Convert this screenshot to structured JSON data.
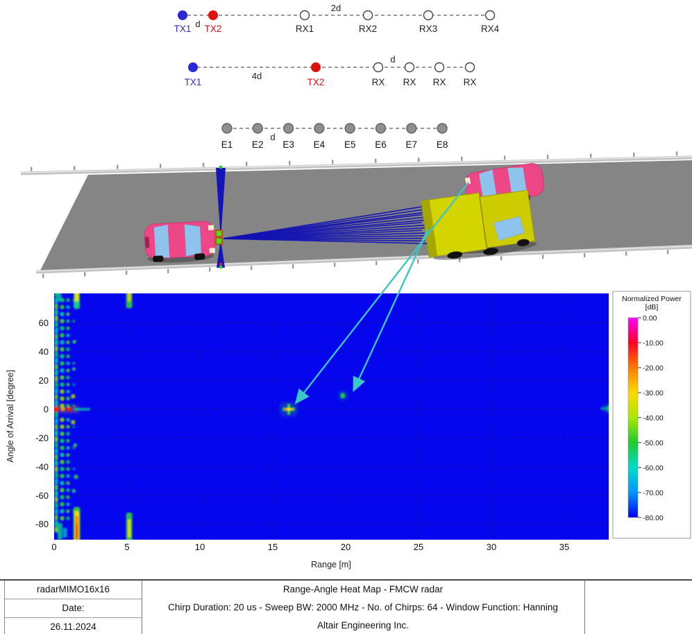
{
  "antenna_arrays": {
    "row1": {
      "tx": [
        {
          "label": "TX1",
          "color": "#2a2ad2"
        },
        {
          "label": "TX2",
          "color": "#e01010"
        }
      ],
      "tx_spacing_label": "d",
      "rx": [
        "RX1",
        "RX2",
        "RX3",
        "RX4"
      ],
      "rx_spacing_label": "2d"
    },
    "row2": {
      "tx": [
        {
          "label": "TX1",
          "color": "#2a2ad2"
        },
        {
          "label": "TX2",
          "color": "#e01010"
        }
      ],
      "tx_spacing_label": "4d",
      "rx": [
        "RX",
        "RX",
        "RX",
        "RX"
      ],
      "rx_spacing_label": "d"
    },
    "virtual_array": {
      "elements": [
        "E1",
        "E2",
        "E3",
        "E4",
        "E5",
        "E6",
        "E7",
        "E8"
      ],
      "spacing_label": "d"
    }
  },
  "chart_data": {
    "type": "heatmap",
    "title": "Range-Angle Heat Map - FMCW radar",
    "xlabel": "Range [m]",
    "ylabel": "Angle of Arrival [degree]",
    "xlim": [
      0,
      38.2
    ],
    "ylim": [
      -90,
      81
    ],
    "x_ticks": [
      0,
      5,
      10,
      15,
      20,
      25,
      30,
      35
    ],
    "y_ticks": [
      60,
      40,
      20,
      0,
      -20,
      -40,
      -60,
      -80
    ],
    "grid": true,
    "legend_position": "right",
    "background_level_db": -80,
    "background_color": "#0505ee",
    "colorbar": {
      "title_line1": "Normalized Power",
      "title_line2": "[dB]",
      "label": "Normalized Power [dB]",
      "max_db": 0,
      "min_db": -80,
      "ticks": [
        "0.00",
        "-10.00",
        "-20.00",
        "-30.00",
        "-40.00",
        "-50.00",
        "-60.00",
        "-70.00",
        "-80.00"
      ],
      "colors": [
        "#ff00ff",
        "#ff0026",
        "#ff7a00",
        "#ffd900",
        "#a8e800",
        "#1ecb2e",
        "#00dcc8",
        "#0096ff",
        "#0000f0"
      ]
    },
    "targets": [
      {
        "range_m": 16.1,
        "angle_deg": 0,
        "peak_db": -10,
        "note": "strong cross-shaped return (truck)"
      },
      {
        "range_m": 19.8,
        "angle_deg": 9.5,
        "peak_db": -50,
        "note": "weak return (car)"
      },
      {
        "range_m": 38.0,
        "angle_deg": 0.5,
        "peak_db": -50,
        "note": "return at right plot edge"
      }
    ],
    "clutter": {
      "edge_column": {
        "range_m": 0.15,
        "angle_start": 80,
        "angle_end": -88,
        "angle_step": 4.2,
        "size": [
          5,
          8
        ],
        "colors": [
          "#00cc66",
          "#00c4c4",
          "#55d52e",
          "#00d898",
          "#7fdd22"
        ]
      },
      "sidelobe_rows": {
        "angle_start": 76,
        "angle_end": -76,
        "angle_step": 4.9,
        "ranges_m": [
          0.55,
          0.95
        ],
        "third_dot_range_m": 1.35,
        "near_axis_color": "#9adf00",
        "colors": [
          "#00d465",
          "#2fd22f",
          "#00c9b0",
          "#59d82a"
        ]
      },
      "blobs": [
        [
          0.15,
          0,
          7,
          7,
          "#ff1e00",
          1
        ],
        [
          1.05,
          0,
          6,
          6,
          "#ff1e00",
          1
        ],
        [
          0.6,
          0,
          6,
          5,
          "#ff9900",
          0.9
        ],
        [
          1.9,
          0,
          24,
          4,
          "#00ccaa",
          0.75
        ],
        [
          0.8,
          0,
          40,
          11,
          "#ffa500",
          0.3
        ],
        [
          1.3,
          9,
          6,
          6,
          "#9ad500",
          0.9
        ],
        [
          1.3,
          -9,
          6,
          6,
          "#9ad500",
          0.9
        ],
        [
          1.4,
          47,
          5,
          5,
          "#2fcc5e",
          0.9
        ],
        [
          1.45,
          -25,
          5,
          5,
          "#2fcc5e",
          0.9
        ],
        [
          1.5,
          -47,
          6,
          6,
          "#2fcc5e",
          0.9
        ],
        [
          1.35,
          28,
          5,
          5,
          "#2fcc6e",
          0.85
        ],
        [
          1.35,
          -57,
          5,
          5,
          "#2fcc6e",
          0.85
        ],
        [
          1.55,
          77,
          9,
          30,
          "#2ecc44",
          0.95
        ],
        [
          1.55,
          79,
          5,
          20,
          "#ffe800",
          0.9
        ],
        [
          1.55,
          73,
          7,
          10,
          "#00ccaa",
          0.8
        ],
        [
          5.15,
          77,
          9,
          28,
          "#2ecc44",
          0.9
        ],
        [
          5.15,
          79,
          4,
          16,
          "#ffcc00",
          0.85
        ],
        [
          0.35,
          79,
          6,
          16,
          "#00cc99",
          0.8
        ],
        [
          1.55,
          -81,
          10,
          54,
          "#2ecc44",
          0.95
        ],
        [
          1.55,
          -82,
          6,
          46,
          "#ffdd00",
          0.95
        ],
        [
          1.55,
          -83,
          4,
          36,
          "#ff7700",
          0.95
        ],
        [
          1.55,
          -85,
          3,
          20,
          "#ff2200",
          0.95
        ],
        [
          5.15,
          -82,
          9,
          42,
          "#2ecc44",
          0.9
        ],
        [
          5.15,
          -83,
          4,
          26,
          "#ffe800",
          0.8
        ],
        [
          0.4,
          -85,
          7,
          24,
          "#00cc88",
          0.85
        ],
        [
          0.75,
          -86,
          6,
          14,
          "#00bbcc",
          0.8
        ],
        [
          16.1,
          0,
          4,
          16,
          "#2ecc55",
          0.95
        ],
        [
          16.1,
          0,
          18,
          5,
          "#2ecc55",
          0.95
        ],
        [
          16.1,
          0,
          12,
          3,
          "#ffe800",
          1
        ],
        [
          15.9,
          0,
          3,
          3,
          "#ff2200",
          1
        ],
        [
          16.3,
          0,
          3,
          3,
          "#ff8800",
          1
        ],
        [
          16.1,
          2,
          3,
          3,
          "#66dd33",
          0.9
        ],
        [
          16.1,
          -2.2,
          3,
          3,
          "#66dd33",
          0.9
        ],
        [
          16.1,
          0,
          26,
          20,
          "#22bb66",
          0.28
        ],
        [
          19.8,
          9.5,
          6,
          7,
          "#22cc44",
          1
        ],
        [
          19.8,
          9.5,
          11,
          12,
          "#00bb99",
          0.4
        ],
        [
          38.1,
          0.5,
          7,
          9,
          "#22cc44",
          1
        ],
        [
          37.7,
          0.5,
          9,
          5,
          "#00cc99",
          0.55
        ],
        [
          38,
          0.5,
          13,
          13,
          "#00bb88",
          0.3
        ]
      ]
    }
  },
  "footer": {
    "project": "radarMIMO16x16",
    "date_label": "Date:",
    "date_value": "26.11.2024",
    "title": "Range-Angle Heat Map - FMCW radar",
    "params": "Chirp Duration: 20 us - Sweep BW: 2000 MHz - No. of Chirps: 64 - Window Function: Hanning",
    "company": "Altair Engineering Inc."
  }
}
